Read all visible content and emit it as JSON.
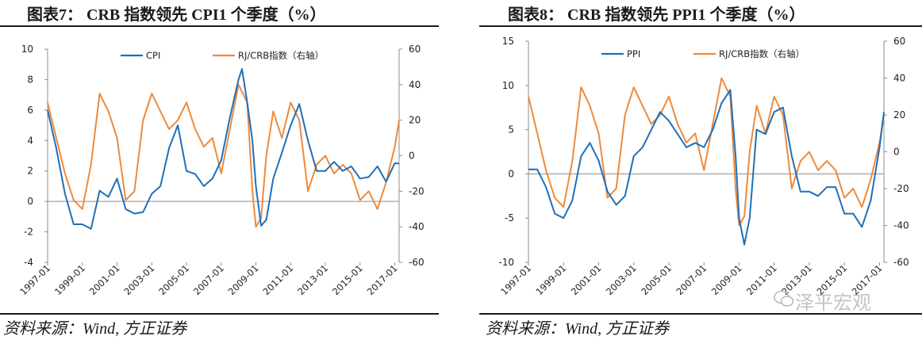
{
  "panels": [
    {
      "id": "left",
      "title": "图表7：  CRB 指数领先 CPI1 个季度（%）",
      "source": "资料来源：Wind, 方正证券"
    },
    {
      "id": "right",
      "title": "图表8：  CRB 指数领先 PPI1 个季度（%）",
      "source": "资料来源：Wind, 方正证券"
    }
  ],
  "watermark": "泽平宏观",
  "colors": {
    "primary": "#1f6fba",
    "secondary": "#ef8a3a",
    "axis": "#8c8c8c"
  },
  "chart_data": [
    {
      "type": "line",
      "title": "",
      "x_labels": [
        "1997-01",
        "1999-01",
        "2001-01",
        "2003-01",
        "2005-01",
        "2007-01",
        "2009-01",
        "2011-01",
        "2013-01",
        "2015-01",
        "2017-01"
      ],
      "x_range": [
        1997.0,
        2017.25
      ],
      "y_left": {
        "range": [
          -4,
          10
        ],
        "ticks": [
          -4,
          -2,
          0,
          2,
          4,
          6,
          8,
          10
        ]
      },
      "y_right": {
        "range": [
          -60,
          60
        ],
        "ticks": [
          -60,
          -40,
          -20,
          0,
          20,
          40,
          60
        ]
      },
      "legend": {
        "position": "top",
        "entries": [
          "CPI",
          "RJ/CRB指数（右轴）"
        ]
      },
      "series": [
        {
          "name": "CPI",
          "axis": "left",
          "x": [
            1997.0,
            1997.5,
            1998.0,
            1998.5,
            1999.0,
            1999.5,
            2000.0,
            2000.5,
            2001.0,
            2001.5,
            2002.0,
            2002.5,
            2003.0,
            2003.5,
            2004.0,
            2004.5,
            2005.0,
            2005.5,
            2006.0,
            2006.5,
            2007.0,
            2007.5,
            2008.0,
            2008.2,
            2008.5,
            2008.8,
            2009.0,
            2009.3,
            2009.6,
            2010.0,
            2010.5,
            2011.0,
            2011.5,
            2012.0,
            2012.5,
            2013.0,
            2013.5,
            2014.0,
            2014.5,
            2015.0,
            2015.5,
            2016.0,
            2016.5,
            2017.0,
            2017.25
          ],
          "values": [
            6.0,
            3.5,
            0.5,
            -1.5,
            -1.5,
            -1.8,
            0.7,
            0.3,
            1.5,
            -0.5,
            -0.8,
            -0.7,
            0.5,
            1.0,
            3.5,
            5.0,
            2.0,
            1.8,
            1.0,
            1.5,
            2.7,
            5.5,
            8.0,
            8.7,
            6.5,
            4.0,
            1.0,
            -1.6,
            -1.2,
            1.5,
            3.2,
            5.0,
            6.4,
            4.0,
            2.0,
            2.0,
            2.6,
            2.0,
            2.3,
            1.5,
            1.6,
            2.3,
            1.3,
            2.5,
            2.5
          ]
        },
        {
          "name": "RJ/CRB指数（右轴）",
          "axis": "right",
          "x": [
            1997.0,
            1997.5,
            1998.0,
            1998.5,
            1999.0,
            1999.5,
            2000.0,
            2000.5,
            2001.0,
            2001.5,
            2002.0,
            2002.5,
            2003.0,
            2003.5,
            2004.0,
            2004.5,
            2005.0,
            2005.5,
            2006.0,
            2006.5,
            2007.0,
            2007.5,
            2008.0,
            2008.5,
            2008.8,
            2009.0,
            2009.3,
            2009.6,
            2010.0,
            2010.5,
            2011.0,
            2011.5,
            2012.0,
            2012.5,
            2013.0,
            2013.5,
            2014.0,
            2014.5,
            2015.0,
            2015.5,
            2016.0,
            2016.5,
            2017.0,
            2017.25
          ],
          "values": [
            30,
            10,
            -10,
            -25,
            -30,
            -5,
            35,
            25,
            10,
            -25,
            -20,
            20,
            35,
            25,
            15,
            20,
            30,
            15,
            5,
            10,
            -10,
            15,
            40,
            30,
            -20,
            -40,
            -35,
            0,
            25,
            10,
            30,
            20,
            -20,
            -5,
            0,
            -10,
            -5,
            -10,
            -25,
            -20,
            -30,
            -15,
            5,
            20
          ]
        }
      ]
    },
    {
      "type": "line",
      "title": "",
      "x_labels": [
        "1997-01",
        "1999-01",
        "2001-01",
        "2003-01",
        "2005-01",
        "2007-01",
        "2009-01",
        "2011-01",
        "2013-01",
        "2015-01",
        "2017-01"
      ],
      "x_range": [
        1997.0,
        2017.25
      ],
      "y_left": {
        "range": [
          -10,
          15
        ],
        "ticks": [
          -10,
          -5,
          0,
          5,
          10,
          15
        ]
      },
      "y_right": {
        "range": [
          -60,
          60
        ],
        "ticks": [
          -60,
          -40,
          -20,
          0,
          20,
          40,
          60
        ]
      },
      "legend": {
        "position": "top",
        "entries": [
          "PPI",
          "RJ/CRB指数（右轴）"
        ]
      },
      "series": [
        {
          "name": "PPI",
          "axis": "left",
          "x": [
            1997.0,
            1997.5,
            1998.0,
            1998.5,
            1999.0,
            1999.5,
            2000.0,
            2000.5,
            2001.0,
            2001.5,
            2002.0,
            2002.5,
            2003.0,
            2003.5,
            2004.0,
            2004.5,
            2005.0,
            2005.5,
            2006.0,
            2006.5,
            2007.0,
            2007.5,
            2008.0,
            2008.5,
            2008.8,
            2009.0,
            2009.3,
            2009.6,
            2010.0,
            2010.5,
            2011.0,
            2011.5,
            2012.0,
            2012.5,
            2013.0,
            2013.5,
            2014.0,
            2014.5,
            2015.0,
            2015.5,
            2016.0,
            2016.5,
            2017.0,
            2017.25
          ],
          "values": [
            0.5,
            0.5,
            -1.5,
            -4.5,
            -5.0,
            -3.0,
            2.0,
            3.5,
            1.5,
            -2.0,
            -3.5,
            -2.5,
            2.0,
            3.0,
            5.0,
            7.0,
            6.0,
            4.5,
            3.0,
            3.5,
            3.0,
            5.0,
            8.0,
            9.5,
            2.0,
            -5.0,
            -8.0,
            -5.0,
            5.0,
            4.5,
            7.0,
            7.5,
            2.0,
            -2.0,
            -2.0,
            -2.5,
            -1.5,
            -1.5,
            -4.5,
            -4.5,
            -6.0,
            -3.0,
            3.0,
            7.0
          ]
        },
        {
          "name": "RJ/CRB指数（右轴）",
          "axis": "right",
          "x": [
            1997.0,
            1997.5,
            1998.0,
            1998.5,
            1999.0,
            1999.5,
            2000.0,
            2000.5,
            2001.0,
            2001.5,
            2002.0,
            2002.5,
            2003.0,
            2003.5,
            2004.0,
            2004.5,
            2005.0,
            2005.5,
            2006.0,
            2006.5,
            2007.0,
            2007.5,
            2008.0,
            2008.5,
            2008.8,
            2009.0,
            2009.3,
            2009.6,
            2010.0,
            2010.5,
            2011.0,
            2011.5,
            2012.0,
            2012.5,
            2013.0,
            2013.5,
            2014.0,
            2014.5,
            2015.0,
            2015.5,
            2016.0,
            2016.5,
            2017.0,
            2017.25
          ],
          "values": [
            30,
            10,
            -10,
            -25,
            -30,
            -5,
            35,
            25,
            10,
            -25,
            -20,
            20,
            35,
            25,
            15,
            20,
            30,
            15,
            5,
            10,
            -10,
            15,
            40,
            30,
            -20,
            -40,
            -35,
            0,
            25,
            10,
            30,
            20,
            -20,
            -5,
            0,
            -10,
            -5,
            -10,
            -25,
            -20,
            -30,
            -15,
            5,
            20
          ]
        }
      ]
    }
  ]
}
